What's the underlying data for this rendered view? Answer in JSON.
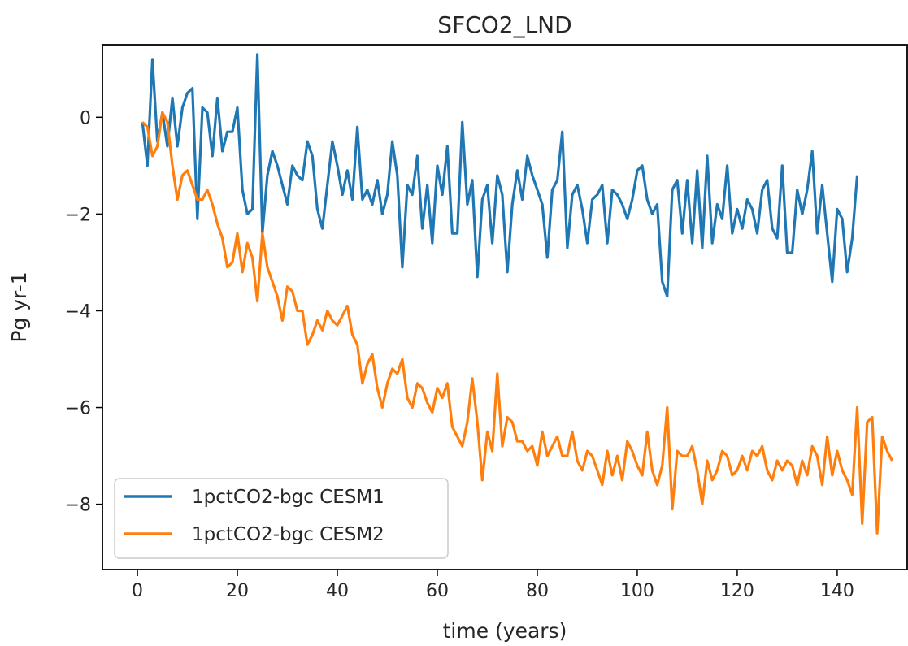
{
  "chart_data": {
    "type": "line",
    "title": "SFCO2_LND",
    "xlabel": "time (years)",
    "ylabel": "Pg yr-1",
    "xlim": [
      -7,
      154
    ],
    "ylim": [
      -9.35,
      1.5
    ],
    "xticks": [
      0,
      20,
      40,
      60,
      80,
      100,
      120,
      140
    ],
    "yticks": [
      0,
      -2,
      -4,
      -6,
      -8
    ],
    "ytick_labels": [
      "0",
      "−2",
      "−4",
      "−6",
      "−8"
    ],
    "grid": false,
    "legend_position": "lower-left",
    "series": [
      {
        "name": "1pctCO2-bgc CESM1",
        "color": "#1f77b4",
        "x_start": 1,
        "values": [
          -0.1,
          -1.0,
          1.2,
          -0.5,
          0.1,
          -0.6,
          0.4,
          -0.6,
          0.2,
          0.5,
          0.6,
          -2.1,
          0.2,
          0.1,
          -0.8,
          0.4,
          -0.7,
          -0.3,
          -0.3,
          0.2,
          -1.5,
          -2.0,
          -1.9,
          1.3,
          -2.4,
          -1.2,
          -0.7,
          -1.0,
          -1.4,
          -1.8,
          -1.0,
          -1.2,
          -1.3,
          -0.5,
          -0.8,
          -1.9,
          -2.3,
          -1.4,
          -0.5,
          -1.0,
          -1.6,
          -1.1,
          -1.7,
          -0.2,
          -1.7,
          -1.5,
          -1.8,
          -1.3,
          -2.0,
          -1.6,
          -0.5,
          -1.2,
          -3.1,
          -1.4,
          -1.6,
          -0.8,
          -2.3,
          -1.4,
          -2.6,
          -1.0,
          -1.6,
          -0.6,
          -2.4,
          -2.4,
          -0.1,
          -1.8,
          -1.3,
          -3.3,
          -1.7,
          -1.4,
          -2.6,
          -1.2,
          -1.6,
          -3.2,
          -1.8,
          -1.1,
          -1.7,
          -0.8,
          -1.2,
          -1.5,
          -1.8,
          -2.9,
          -1.5,
          -1.3,
          -0.3,
          -2.7,
          -1.6,
          -1.4,
          -1.9,
          -2.6,
          -1.7,
          -1.6,
          -1.4,
          -2.6,
          -1.5,
          -1.6,
          -1.8,
          -2.1,
          -1.7,
          -1.1,
          -1.0,
          -1.7,
          -2.0,
          -1.8,
          -3.4,
          -3.7,
          -1.5,
          -1.3,
          -2.4,
          -1.3,
          -2.6,
          -1.1,
          -2.7,
          -0.8,
          -2.6,
          -1.8,
          -2.1,
          -1.0,
          -2.4,
          -1.9,
          -2.3,
          -1.7,
          -1.9,
          -2.4,
          -1.5,
          -1.3,
          -2.3,
          -2.5,
          -1.0,
          -2.8,
          -2.8,
          -1.5,
          -2.0,
          -1.5,
          -0.7,
          -2.4,
          -1.4,
          -2.4,
          -3.4,
          -1.9,
          -2.1,
          -3.2,
          -2.5,
          -1.2
        ]
      },
      {
        "name": "1pctCO2-bgc CESM2",
        "color": "#ff7f0e",
        "x_start": 1,
        "values": [
          -0.1,
          -0.2,
          -0.8,
          -0.6,
          0.1,
          -0.1,
          -1.0,
          -1.7,
          -1.2,
          -1.1,
          -1.4,
          -1.7,
          -1.7,
          -1.5,
          -1.8,
          -2.2,
          -2.5,
          -3.1,
          -3.0,
          -2.4,
          -3.2,
          -2.6,
          -2.9,
          -3.8,
          -2.4,
          -3.1,
          -3.4,
          -3.7,
          -4.2,
          -3.5,
          -3.6,
          -4.0,
          -4.0,
          -4.7,
          -4.5,
          -4.2,
          -4.4,
          -4.0,
          -4.2,
          -4.3,
          -4.1,
          -3.9,
          -4.5,
          -4.7,
          -5.5,
          -5.1,
          -4.9,
          -5.6,
          -6.0,
          -5.5,
          -5.2,
          -5.3,
          -5.0,
          -5.8,
          -6.0,
          -5.5,
          -5.6,
          -5.9,
          -6.1,
          -5.6,
          -5.8,
          -5.5,
          -6.4,
          -6.6,
          -6.8,
          -6.3,
          -5.4,
          -6.3,
          -7.5,
          -6.5,
          -6.9,
          -5.3,
          -6.8,
          -6.2,
          -6.3,
          -6.7,
          -6.7,
          -6.9,
          -6.8,
          -7.2,
          -6.5,
          -7.0,
          -6.8,
          -6.6,
          -7.0,
          -7.0,
          -6.5,
          -7.1,
          -7.3,
          -6.9,
          -7.0,
          -7.3,
          -7.6,
          -6.9,
          -7.4,
          -7.0,
          -7.5,
          -6.7,
          -6.9,
          -7.2,
          -7.4,
          -6.5,
          -7.3,
          -7.6,
          -7.2,
          -6.0,
          -8.1,
          -6.9,
          -7.0,
          -7.0,
          -6.8,
          -7.3,
          -8.0,
          -7.1,
          -7.5,
          -7.3,
          -6.9,
          -7.0,
          -7.4,
          -7.3,
          -7.0,
          -7.3,
          -6.9,
          -7.0,
          -6.8,
          -7.3,
          -7.5,
          -7.1,
          -7.3,
          -7.1,
          -7.2,
          -7.6,
          -7.1,
          -7.4,
          -6.8,
          -7.0,
          -7.6,
          -6.6,
          -7.4,
          -6.9,
          -7.3,
          -7.5,
          -7.8,
          -6.0,
          -8.4,
          -6.3,
          -6.2,
          -8.6,
          -6.6,
          -6.9,
          -7.1
        ]
      }
    ]
  }
}
